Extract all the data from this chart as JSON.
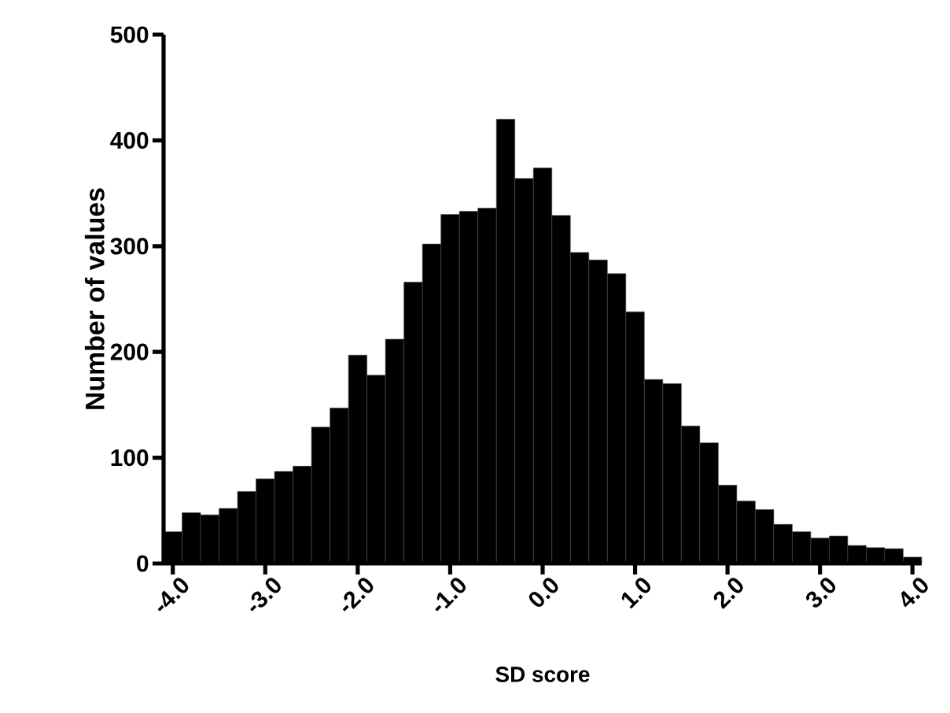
{
  "chart_data": {
    "type": "histogram",
    "xlabel": "SD score",
    "ylabel": "Number of values",
    "color": "#000000",
    "bins": [
      -4.1,
      -3.9,
      -3.7,
      -3.5,
      -3.3,
      -3.1,
      -2.9,
      -2.7,
      -2.5,
      -2.3,
      -2.1,
      -1.9,
      -1.7,
      -1.5,
      -1.3,
      -1.1,
      -0.9,
      -0.7,
      -0.5,
      -0.3,
      -0.1,
      0.1,
      0.3,
      0.5,
      0.7,
      0.9,
      1.1,
      1.3,
      1.5,
      1.7,
      1.9,
      2.1,
      2.3,
      2.5,
      2.7,
      2.9,
      3.1,
      3.3,
      3.5,
      3.7,
      3.9,
      4.1
    ],
    "values": [
      30,
      48,
      46,
      52,
      68,
      80,
      87,
      92,
      129,
      147,
      197,
      178,
      212,
      266,
      302,
      330,
      333,
      336,
      420,
      364,
      374,
      329,
      294,
      287,
      274,
      238,
      174,
      170,
      130,
      114,
      74,
      59,
      51,
      37,
      30,
      24,
      26,
      17,
      15,
      14,
      6
    ],
    "xlim": [
      -4.1,
      4.1
    ],
    "ylim": [
      0,
      500
    ],
    "xticks": [
      {
        "value": -4,
        "label": "-4.0"
      },
      {
        "value": -3,
        "label": "-3.0"
      },
      {
        "value": -2,
        "label": "-2.0"
      },
      {
        "value": -1,
        "label": "-1.0"
      },
      {
        "value": 0,
        "label": "0.0"
      },
      {
        "value": 1,
        "label": "1.0"
      },
      {
        "value": 2,
        "label": "2.0"
      },
      {
        "value": 3,
        "label": "3.0"
      },
      {
        "value": 4,
        "label": "4.0"
      }
    ],
    "yticks": [
      0,
      100,
      200,
      300,
      400,
      500
    ]
  }
}
